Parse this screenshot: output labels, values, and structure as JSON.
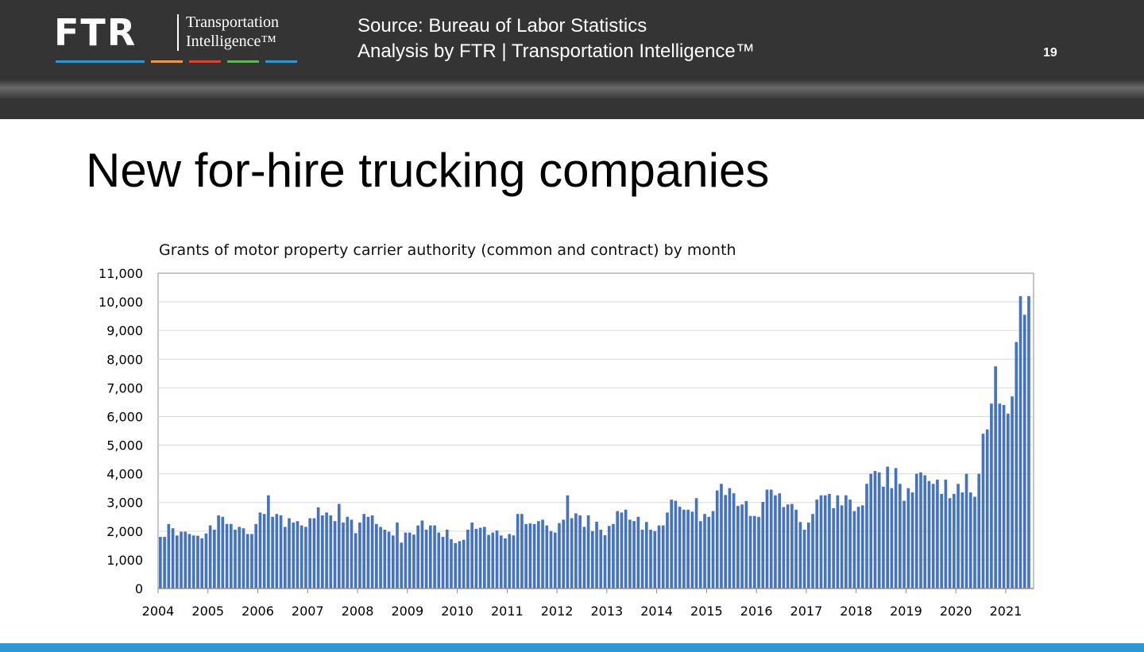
{
  "header": {
    "logo_text": "FTR",
    "logo_subtitle": [
      "Transportation",
      "Intelligence™"
    ],
    "logo_line_colors": [
      "#2c97d3",
      "#f0963c",
      "#d9453b",
      "#5fb55a",
      "#2c97d3"
    ],
    "source_line1": "Source: Bureau of Labor Statistics",
    "source_line2": "Analysis by FTR | Transportation Intelligence™",
    "page_number": "19"
  },
  "slide_title": "New for-hire trucking companies",
  "chart_data": {
    "type": "bar",
    "title": "Grants of motor property carrier authority (common and contract) by month",
    "xlabel": "",
    "ylabel": "",
    "ylim": [
      0,
      11000
    ],
    "yticks": [
      0,
      1000,
      2000,
      3000,
      4000,
      5000,
      6000,
      7000,
      8000,
      9000,
      10000,
      11000
    ],
    "ytick_labels": [
      "0",
      "1,000",
      "2,000",
      "3,000",
      "4,000",
      "5,000",
      "6,000",
      "7,000",
      "8,000",
      "9,000",
      "10,000",
      "11,000"
    ],
    "xtick_labels": [
      "2004",
      "2005",
      "2006",
      "2007",
      "2008",
      "2009",
      "2010",
      "2011",
      "2012",
      "2013",
      "2014",
      "2015",
      "2016",
      "2017",
      "2018",
      "2019",
      "2020",
      "2021"
    ],
    "grid": true,
    "bar_color": "#4472c4",
    "start": "2004-01",
    "frequency": "monthly",
    "values": [
      1800,
      1800,
      2250,
      2100,
      1850,
      1980,
      1980,
      1900,
      1850,
      1840,
      1750,
      1920,
      2200,
      2050,
      2550,
      2500,
      2250,
      2250,
      2050,
      2150,
      2100,
      1900,
      1900,
      2250,
      2650,
      2600,
      3250,
      2500,
      2600,
      2550,
      2150,
      2450,
      2300,
      2350,
      2200,
      2150,
      2450,
      2450,
      2830,
      2550,
      2650,
      2550,
      2350,
      2950,
      2300,
      2500,
      2400,
      1930,
      2300,
      2600,
      2500,
      2550,
      2250,
      2150,
      2050,
      1980,
      1850,
      2300,
      1600,
      1950,
      1950,
      1880,
      2200,
      2370,
      2050,
      2200,
      2200,
      1950,
      1800,
      2050,
      1720,
      1580,
      1650,
      1700,
      2050,
      2300,
      2080,
      2120,
      2150,
      1870,
      1950,
      2020,
      1850,
      1750,
      1900,
      1850,
      2600,
      2600,
      2250,
      2270,
      2250,
      2350,
      2400,
      2200,
      2000,
      1950,
      2280,
      2400,
      3250,
      2450,
      2620,
      2550,
      2150,
      2550,
      2000,
      2330,
      2050,
      1860,
      2180,
      2250,
      2700,
      2650,
      2750,
      2400,
      2350,
      2500,
      2050,
      2320,
      2050,
      2000,
      2200,
      2200,
      2650,
      3100,
      3060,
      2850,
      2750,
      2750,
      2680,
      3150,
      2350,
      2600,
      2500,
      2700,
      3420,
      3650,
      3260,
      3500,
      3320,
      2880,
      2930,
      3050,
      2530,
      2530,
      2500,
      3020,
      3450,
      3450,
      3250,
      3320,
      2840,
      2930,
      2950,
      2750,
      2320,
      2050,
      2300,
      2600,
      3100,
      3250,
      3250,
      3300,
      2800,
      3250,
      2900,
      3250,
      3100,
      2700,
      2850,
      2900,
      3650,
      4000,
      4100,
      4050,
      3550,
      4250,
      3500,
      4200,
      3650,
      3060,
      3500,
      3350,
      4000,
      4050,
      3950,
      3750,
      3650,
      3800,
      3300,
      3800,
      3150,
      3300,
      3650,
      3350,
      4000,
      3350,
      3200,
      4000,
      5400,
      5550,
      6450,
      7750,
      6450,
      6400,
      6100,
      6700,
      8600,
      10200,
      9550,
      10200
    ]
  }
}
